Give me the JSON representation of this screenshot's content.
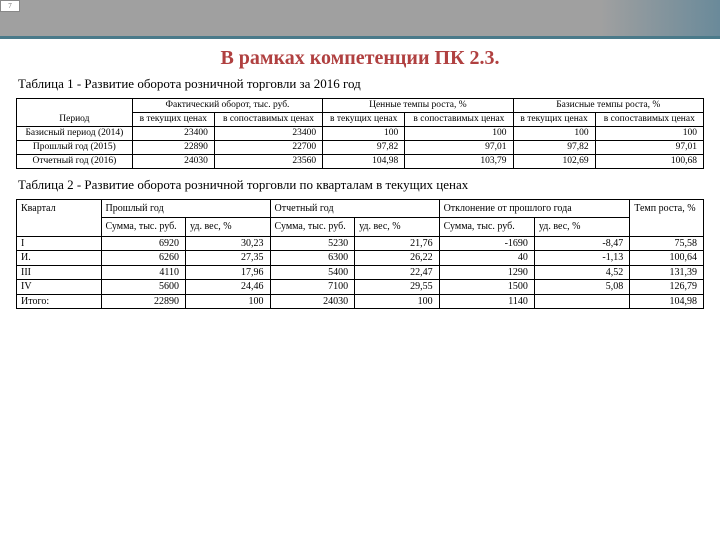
{
  "page_number": "7",
  "main_title": "В рамках компетенции ПК 2.3.",
  "table1_caption": "Таблица 1 - Развитие оборота розничной торговли за 2016 год",
  "table2_caption": "Таблица 2 - Развитие оборота розничной торговли по кварталам в текущих ценах",
  "t1": {
    "h_period": "Период",
    "h_fact": "Фактический оборот, тыс. руб.",
    "h_chain": "Ценные темпы роста, %",
    "h_base": "Базисные темпы роста, %",
    "h_cur": "в текущих ценах",
    "h_comp": "в сопоставимых ценах",
    "rows": [
      {
        "label": "Базисный период (2014)",
        "a": "23400",
        "b": "23400",
        "c": "100",
        "d": "100",
        "e": "100",
        "f": "100"
      },
      {
        "label": "Прошлый год (2015)",
        "a": "22890",
        "b": "22700",
        "c": "97,82",
        "d": "97,01",
        "e": "97,82",
        "f": "97,01"
      },
      {
        "label": "Отчетный год (2016)",
        "a": "24030",
        "b": "23560",
        "c": "104,98",
        "d": "103,79",
        "e": "102,69",
        "f": "100,68"
      }
    ]
  },
  "t2": {
    "h_quarter": "Квартал",
    "h_prev": "Прошлый год",
    "h_cur": "Отчетный год",
    "h_dev": "Отклонение от прошлого года",
    "h_rate": "Темп роста, %",
    "h_sum": "Сумма, тыс. руб.",
    "h_wt": "уд. вес, %",
    "rows": [
      {
        "q": "I",
        "a": "6920",
        "b": "30,23",
        "c": "5230",
        "d": "21,76",
        "e": "-1690",
        "f": "-8,47",
        "g": "75,58"
      },
      {
        "q": "И.",
        "a": "6260",
        "b": "27,35",
        "c": "6300",
        "d": "26,22",
        "e": "40",
        "f": "-1,13",
        "g": "100,64"
      },
      {
        "q": "III",
        "a": "4110",
        "b": "17,96",
        "c": "5400",
        "d": "22,47",
        "e": "1290",
        "f": "4,52",
        "g": "131,39"
      },
      {
        "q": "IV",
        "a": "5600",
        "b": "24,46",
        "c": "7100",
        "d": "29,55",
        "e": "1500",
        "f": "5,08",
        "g": "126,79"
      },
      {
        "q": "Итого:",
        "a": "22890",
        "b": "100",
        "c": "24030",
        "d": "100",
        "e": "1140",
        "f": "",
        "g": "104,98"
      }
    ]
  }
}
